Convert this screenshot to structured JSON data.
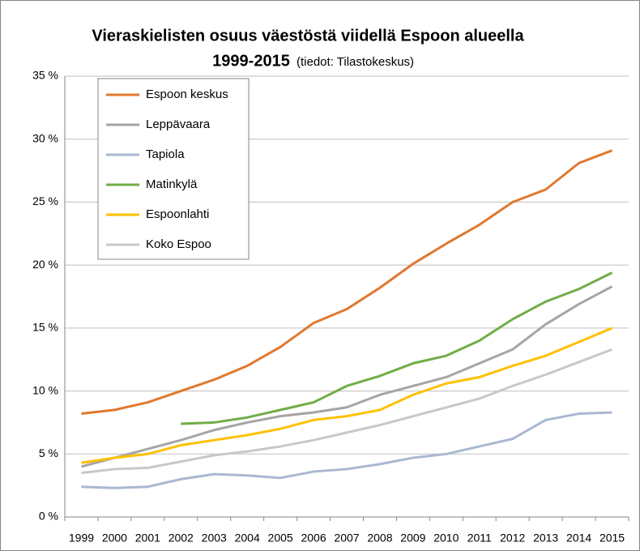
{
  "chart_data": {
    "type": "line",
    "title": "Vieraskielisten osuus väestöstä viidellä Espoon alueella",
    "subtitle": "1999-2015",
    "note": "(tiedot: Tilastokeskus)",
    "categories": [
      "1999",
      "2000",
      "2001",
      "2002",
      "2003",
      "2004",
      "2005",
      "2006",
      "2007",
      "2008",
      "2009",
      "2010",
      "2011",
      "2012",
      "2013",
      "2014",
      "2015"
    ],
    "series": [
      {
        "name": "Espoon keskus",
        "color": "#e0782f",
        "values": [
          8.2,
          8.5,
          9.1,
          10.0,
          10.9,
          12.0,
          13.5,
          15.4,
          16.5,
          18.2,
          20.1,
          21.7,
          23.2,
          25.0,
          26.0,
          28.1,
          29.1
        ]
      },
      {
        "name": "Leppävaara",
        "color": "#a5a5a5",
        "values": [
          4.0,
          4.7,
          5.4,
          6.1,
          6.9,
          7.5,
          8.0,
          8.3,
          8.7,
          9.7,
          10.4,
          11.1,
          12.2,
          13.3,
          15.3,
          16.9,
          18.3
        ]
      },
      {
        "name": "Tapiola",
        "color": "#a9b8d1",
        "values": [
          2.4,
          2.3,
          2.4,
          3.0,
          3.4,
          3.3,
          3.1,
          3.6,
          3.8,
          4.2,
          4.7,
          5.0,
          5.6,
          6.2,
          7.7,
          8.2,
          8.3
        ]
      },
      {
        "name": "Matinkylä",
        "color": "#70ad47",
        "values": [
          null,
          null,
          null,
          7.4,
          7.5,
          7.9,
          8.5,
          9.1,
          10.4,
          11.2,
          12.2,
          12.8,
          14.0,
          15.7,
          17.1,
          18.1,
          19.4
        ]
      },
      {
        "name": "Espoonlahti",
        "color": "#ffc000",
        "values": [
          4.3,
          4.7,
          5.0,
          5.7,
          6.1,
          6.5,
          7.0,
          7.7,
          8.0,
          8.5,
          9.7,
          10.6,
          11.1,
          12.0,
          12.8,
          13.9,
          15.0
        ]
      },
      {
        "name": "Koko Espoo",
        "color": "#c8c8c8",
        "values": [
          3.5,
          3.8,
          3.9,
          4.4,
          4.9,
          5.2,
          5.6,
          6.1,
          6.7,
          7.3,
          8.0,
          8.7,
          9.4,
          10.4,
          11.3,
          12.3,
          13.3
        ]
      }
    ],
    "ylim": [
      0,
      35
    ],
    "yticks": [
      {
        "value": 0,
        "label": "0 %"
      },
      {
        "value": 5,
        "label": "5 %"
      },
      {
        "value": 10,
        "label": "10 %"
      },
      {
        "value": 15,
        "label": "15 %"
      },
      {
        "value": 20,
        "label": "20 %"
      },
      {
        "value": 25,
        "label": "25 %"
      },
      {
        "value": 30,
        "label": "30 %"
      },
      {
        "value": 35,
        "label": "35 %"
      }
    ],
    "grid": true,
    "legend": "top-left"
  }
}
